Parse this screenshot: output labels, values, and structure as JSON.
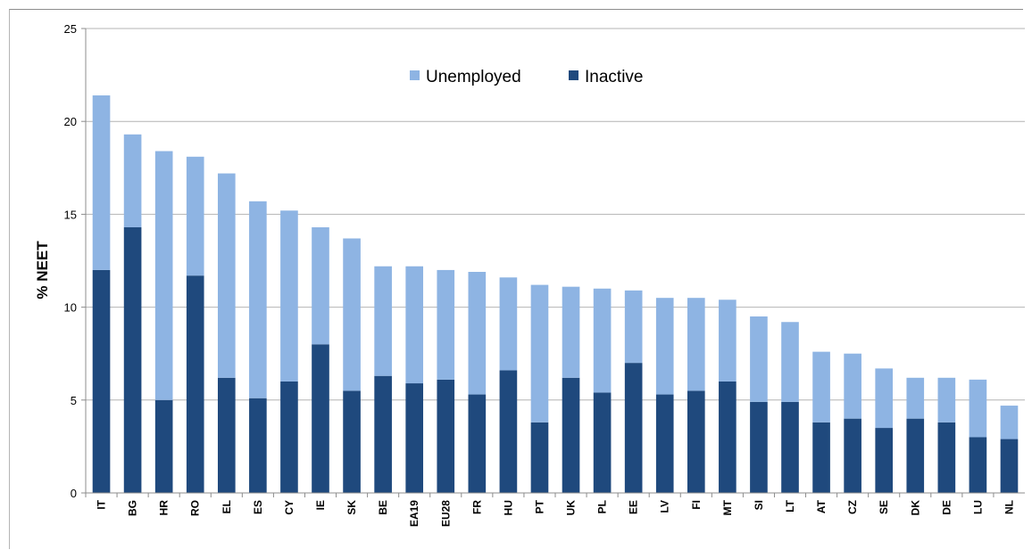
{
  "chart_data": {
    "type": "bar",
    "stacked": true,
    "title": "",
    "xlabel": "",
    "ylabel": "% NEET",
    "ylim": [
      0,
      25
    ],
    "yticks": [
      0,
      5,
      10,
      15,
      20,
      25
    ],
    "grid": true,
    "legend_position": "top-center",
    "categories": [
      "IT",
      "BG",
      "HR",
      "RO",
      "EL",
      "ES",
      "CY",
      "IE",
      "SK",
      "BE",
      "EA19",
      "EU28",
      "FR",
      "HU",
      "PT",
      "UK",
      "PL",
      "EE",
      "LV",
      "FI",
      "MT",
      "SI",
      "LT",
      "AT",
      "CZ",
      "SE",
      "DK",
      "DE",
      "LU",
      "NL"
    ],
    "series": [
      {
        "name": "Inactive",
        "color": "#1f497d",
        "values": [
          12.0,
          14.3,
          5.0,
          11.7,
          6.2,
          5.1,
          6.0,
          8.0,
          5.5,
          6.3,
          5.9,
          6.1,
          5.3,
          6.6,
          3.8,
          6.2,
          5.4,
          7.0,
          5.3,
          5.5,
          6.0,
          4.9,
          4.9,
          3.8,
          4.0,
          3.5,
          4.0,
          3.8,
          3.0,
          2.9
        ]
      },
      {
        "name": "Unemployed",
        "color": "#8eb4e3",
        "values": [
          9.4,
          5.0,
          13.4,
          6.4,
          11.0,
          10.6,
          9.2,
          6.3,
          8.2,
          5.9,
          6.3,
          5.9,
          6.6,
          5.0,
          7.4,
          4.9,
          5.6,
          3.9,
          5.2,
          5.0,
          4.4,
          4.6,
          4.3,
          3.8,
          3.5,
          3.2,
          2.2,
          2.4,
          3.1,
          1.8
        ]
      }
    ]
  }
}
